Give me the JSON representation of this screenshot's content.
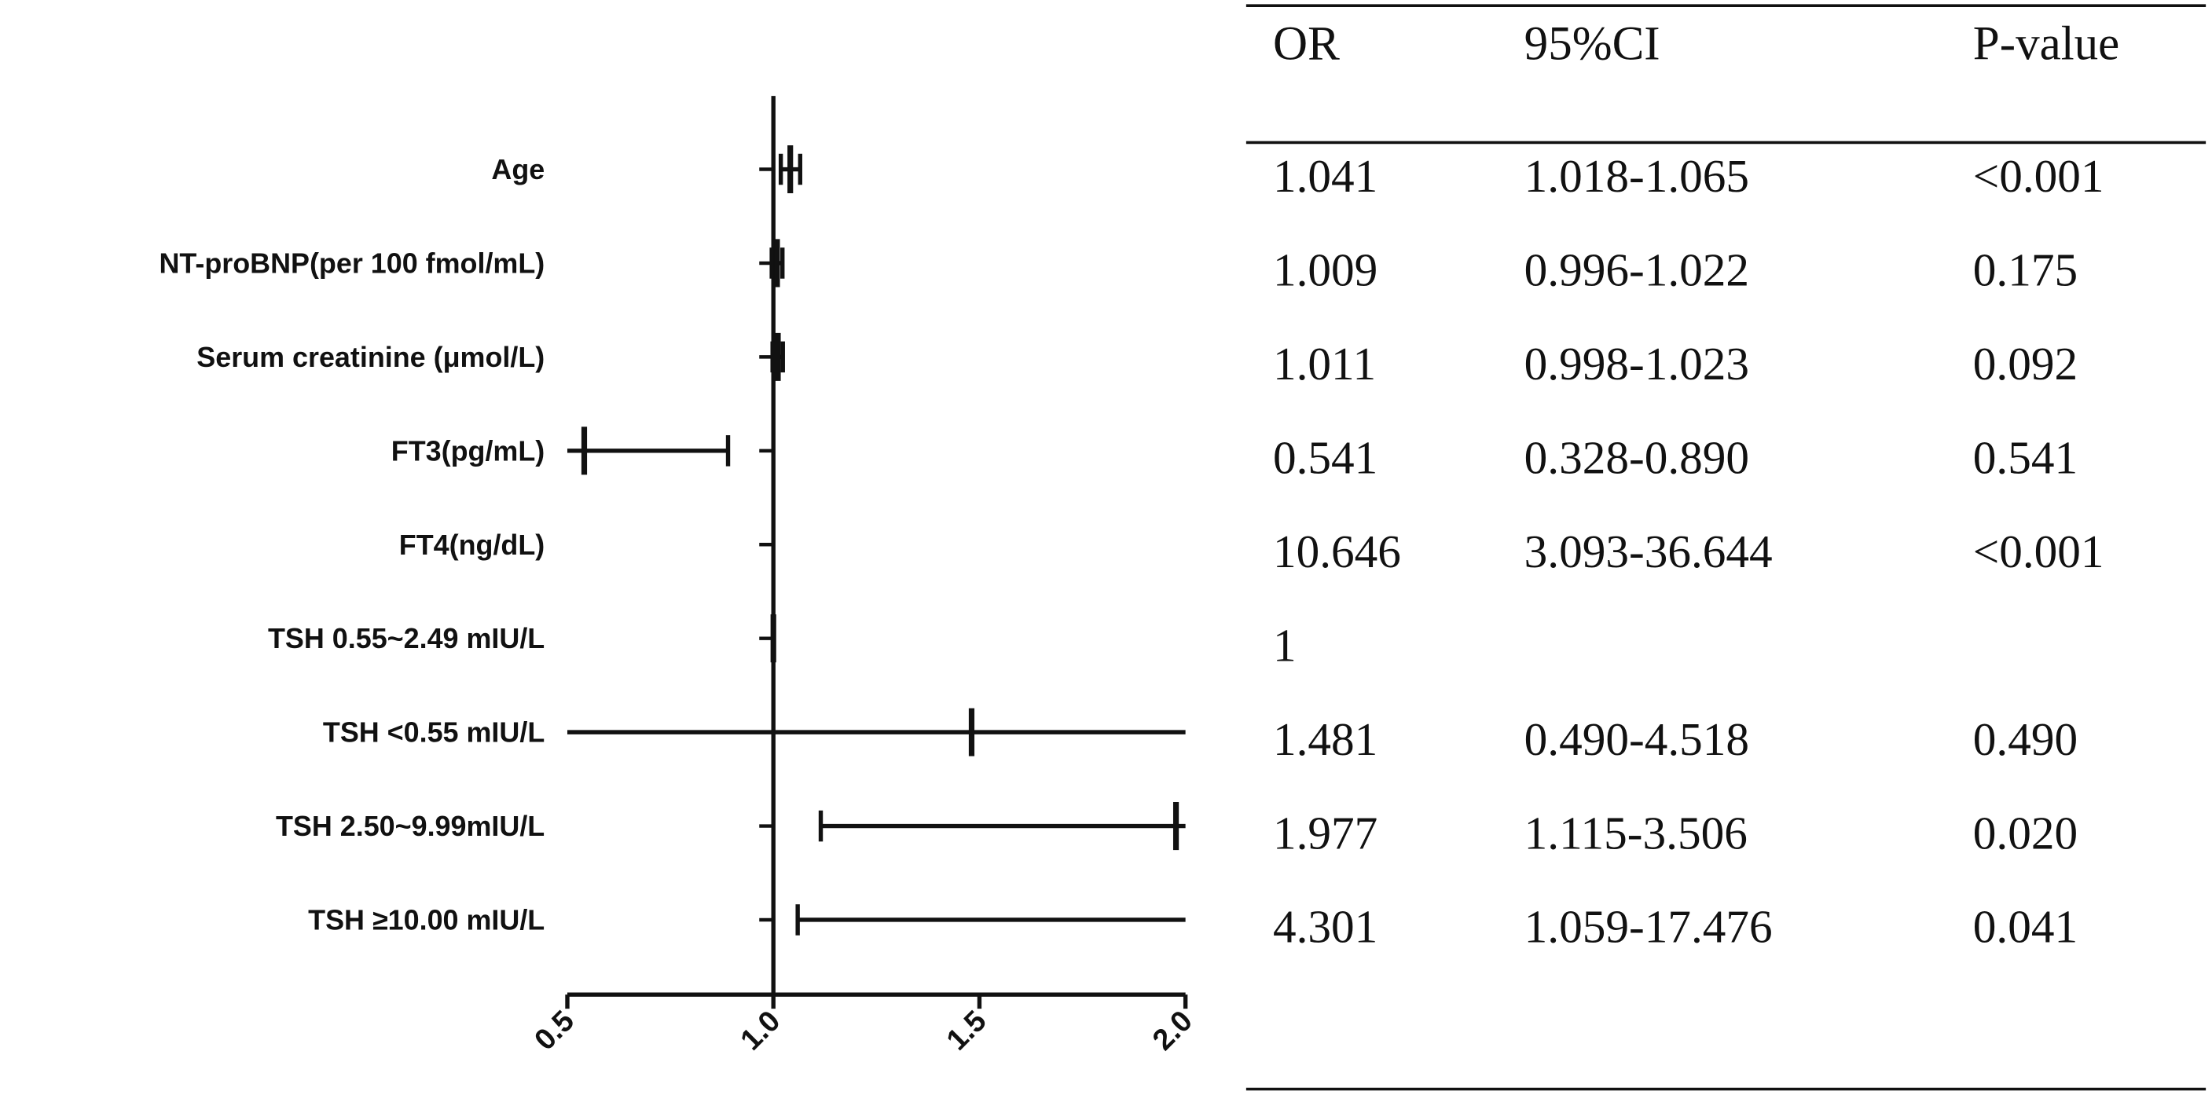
{
  "chart_data": {
    "type": "forest",
    "reference_value": 1.0,
    "x_axis": {
      "xlim": [
        0.5,
        2.0
      ],
      "ticks": [
        "0.5",
        "1.0",
        "1.5",
        "2.0"
      ]
    },
    "rows": [
      {
        "label": "Age",
        "or": 1.041,
        "ci_low": 1.018,
        "ci_high": 1.065,
        "or_text": "1.041",
        "ci_text": "1.018-1.065",
        "p_text": "<0.001"
      },
      {
        "label": "NT-proBNP(per 100 fmol/mL)",
        "or": 1.009,
        "ci_low": 0.996,
        "ci_high": 1.022,
        "or_text": "1.009",
        "ci_text": "0.996-1.022",
        "p_text": "0.175"
      },
      {
        "label": "Serum creatinine (μmol/L)",
        "or": 1.011,
        "ci_low": 0.998,
        "ci_high": 1.023,
        "or_text": "1.011",
        "ci_text": "0.998-1.023",
        "p_text": "0.092"
      },
      {
        "label": "FT3(pg/mL)",
        "or": 0.541,
        "ci_low": 0.328,
        "ci_high": 0.89,
        "or_text": "0.541",
        "ci_text": "0.328-0.890",
        "p_text": "0.541"
      },
      {
        "label": "FT4(ng/dL)",
        "or": 10.646,
        "ci_low": 3.093,
        "ci_high": 36.644,
        "or_text": "10.646",
        "ci_text": "3.093-36.644",
        "p_text": "<0.001"
      },
      {
        "label": "TSH 0.55~2.49 mIU/L",
        "or": 1,
        "ci_low": null,
        "ci_high": null,
        "or_text": "1",
        "ci_text": "",
        "p_text": ""
      },
      {
        "label": "TSH <0.55 mIU/L",
        "or": 1.481,
        "ci_low": 0.49,
        "ci_high": 4.518,
        "or_text": "1.481",
        "ci_text": "0.490-4.518",
        "p_text": "0.490"
      },
      {
        "label": "TSH 2.50~9.99mIU/L",
        "or": 1.977,
        "ci_low": 1.115,
        "ci_high": 3.506,
        "or_text": "1.977",
        "ci_text": "1.115-3.506",
        "p_text": "0.020"
      },
      {
        "label": "TSH ≥10.00 mIU/L",
        "or": 4.301,
        "ci_low": 1.059,
        "ci_high": 17.476,
        "or_text": "4.301",
        "ci_text": "1.059-17.476",
        "p_text": "0.041"
      }
    ]
  },
  "table": {
    "headers": {
      "or": "OR",
      "ci": "95%CI",
      "p": "P-value"
    }
  },
  "colors": {
    "ink": "#111111"
  }
}
